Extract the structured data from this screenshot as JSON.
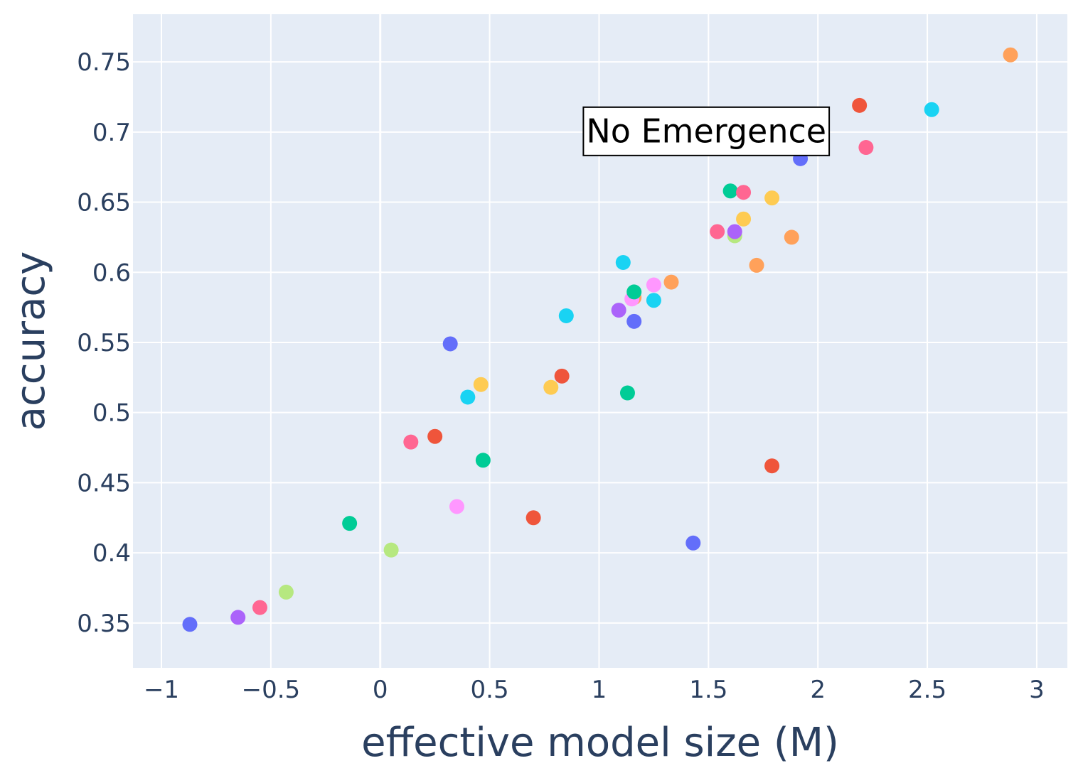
{
  "chart_data": {
    "type": "scatter",
    "title": "",
    "xlabel": "effective model size (M)",
    "ylabel": "accuracy",
    "xlim": [
      -1.13,
      3.14
    ],
    "ylim": [
      0.318,
      0.784
    ],
    "grid": true,
    "plot_bg": "#e5ecf6",
    "grid_color": "#ffffff",
    "text_color": "#2a3f5f",
    "x_ticks": [
      {
        "value": -1,
        "label": "−1"
      },
      {
        "value": -0.5,
        "label": "−0.5"
      },
      {
        "value": 0,
        "label": "0"
      },
      {
        "value": 0.5,
        "label": "0.5"
      },
      {
        "value": 1,
        "label": "1"
      },
      {
        "value": 1.5,
        "label": "1.5"
      },
      {
        "value": 2,
        "label": "2"
      },
      {
        "value": 2.5,
        "label": "2.5"
      },
      {
        "value": 3,
        "label": "3"
      }
    ],
    "y_ticks": [
      {
        "value": 0.35,
        "label": "0.35"
      },
      {
        "value": 0.4,
        "label": "0.4"
      },
      {
        "value": 0.45,
        "label": "0.45"
      },
      {
        "value": 0.5,
        "label": "0.5"
      },
      {
        "value": 0.55,
        "label": "0.55"
      },
      {
        "value": 0.6,
        "label": "0.6"
      },
      {
        "value": 0.65,
        "label": "0.65"
      },
      {
        "value": 0.7,
        "label": "0.7"
      },
      {
        "value": 0.75,
        "label": "0.75"
      }
    ],
    "annotation": {
      "text": "No Emergence",
      "x": 1.49,
      "y": 0.7
    },
    "points": [
      {
        "x": -0.87,
        "y": 0.349,
        "color": "#636efa"
      },
      {
        "x": -0.65,
        "y": 0.354,
        "color": "#ab63fa"
      },
      {
        "x": -0.55,
        "y": 0.361,
        "color": "#ff6692"
      },
      {
        "x": -0.43,
        "y": 0.372,
        "color": "#b6e880"
      },
      {
        "x": -0.14,
        "y": 0.421,
        "color": "#00cc96"
      },
      {
        "x": 0.05,
        "y": 0.402,
        "color": "#b6e880"
      },
      {
        "x": 0.14,
        "y": 0.479,
        "color": "#ff6692"
      },
      {
        "x": 0.25,
        "y": 0.483,
        "color": "#ef553b"
      },
      {
        "x": 0.32,
        "y": 0.549,
        "color": "#636efa"
      },
      {
        "x": 0.35,
        "y": 0.433,
        "color": "#ff97ff"
      },
      {
        "x": 0.4,
        "y": 0.511,
        "color": "#19d3f3"
      },
      {
        "x": 0.46,
        "y": 0.52,
        "color": "#fecb52"
      },
      {
        "x": 0.47,
        "y": 0.466,
        "color": "#00cc96"
      },
      {
        "x": 0.7,
        "y": 0.425,
        "color": "#ef553b"
      },
      {
        "x": 0.78,
        "y": 0.518,
        "color": "#fecb52"
      },
      {
        "x": 0.83,
        "y": 0.526,
        "color": "#ef553b"
      },
      {
        "x": 0.85,
        "y": 0.569,
        "color": "#19d3f3"
      },
      {
        "x": 1.09,
        "y": 0.573,
        "color": "#ab63fa"
      },
      {
        "x": 1.11,
        "y": 0.607,
        "color": "#19d3f3"
      },
      {
        "x": 1.13,
        "y": 0.514,
        "color": "#00cc96"
      },
      {
        "x": 1.16,
        "y": 0.582,
        "color": "#ffa15a"
      },
      {
        "x": 1.15,
        "y": 0.581,
        "color": "#ff97ff"
      },
      {
        "x": 1.16,
        "y": 0.586,
        "color": "#00cc96"
      },
      {
        "x": 1.16,
        "y": 0.565,
        "color": "#636efa"
      },
      {
        "x": 1.25,
        "y": 0.591,
        "color": "#ff97ff"
      },
      {
        "x": 1.25,
        "y": 0.58,
        "color": "#19d3f3"
      },
      {
        "x": 1.33,
        "y": 0.593,
        "color": "#ffa15a"
      },
      {
        "x": 1.43,
        "y": 0.407,
        "color": "#636efa"
      },
      {
        "x": 1.54,
        "y": 0.629,
        "color": "#ff6692"
      },
      {
        "x": 1.6,
        "y": 0.658,
        "color": "#00cc96"
      },
      {
        "x": 1.62,
        "y": 0.626,
        "color": "#b6e880"
      },
      {
        "x": 1.62,
        "y": 0.629,
        "color": "#ab63fa"
      },
      {
        "x": 1.66,
        "y": 0.638,
        "color": "#fecb52"
      },
      {
        "x": 1.66,
        "y": 0.657,
        "color": "#ff6692"
      },
      {
        "x": 1.72,
        "y": 0.605,
        "color": "#ffa15a"
      },
      {
        "x": 1.79,
        "y": 0.653,
        "color": "#fecb52"
      },
      {
        "x": 1.79,
        "y": 0.462,
        "color": "#ef553b"
      },
      {
        "x": 1.88,
        "y": 0.625,
        "color": "#ffa15a"
      },
      {
        "x": 1.92,
        "y": 0.681,
        "color": "#636efa"
      },
      {
        "x": 2.19,
        "y": 0.719,
        "color": "#ef553b"
      },
      {
        "x": 2.22,
        "y": 0.689,
        "color": "#ff6692"
      },
      {
        "x": 2.52,
        "y": 0.716,
        "color": "#19d3f3"
      },
      {
        "x": 2.88,
        "y": 0.755,
        "color": "#ffa15a"
      }
    ]
  }
}
